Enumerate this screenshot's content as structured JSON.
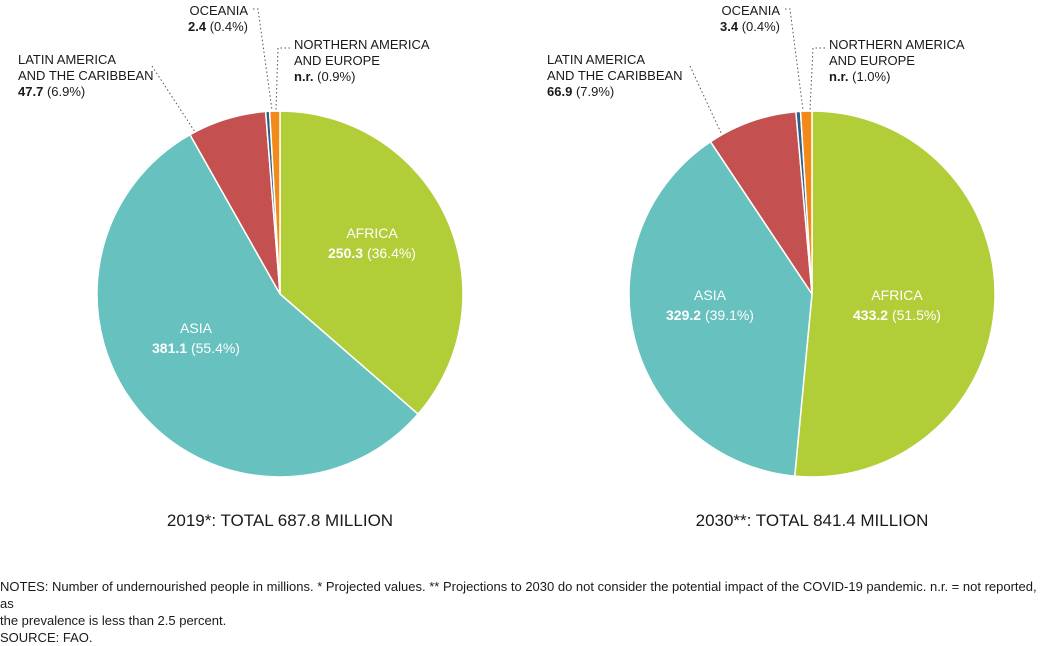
{
  "chart_data": [
    {
      "type": "pie",
      "caption": "2019*: TOTAL 687.8 MILLION",
      "slices": [
        {
          "key": "africa",
          "name": "AFRICA",
          "value": 250.3,
          "display_value": "250.3",
          "percent": "(36.4%)",
          "color": "#b1cd38"
        },
        {
          "key": "asia",
          "name": "ASIA",
          "value": 381.1,
          "display_value": "381.1",
          "percent": "(55.4%)",
          "color": "#66c1bf"
        },
        {
          "key": "latam",
          "name_lines": [
            "LATIN AMERICA",
            "AND THE CARIBBEAN"
          ],
          "value": 47.7,
          "display_value": "47.7",
          "percent": "(6.9%)",
          "color": "#c4504f"
        },
        {
          "key": "oceania",
          "name": "OCEANIA",
          "value": 2.4,
          "display_value": "2.4",
          "percent": "(0.4%)",
          "color": "#2f5e89"
        },
        {
          "key": "namerica_europe",
          "name_lines": [
            "NORTHERN AMERICA",
            "AND EUROPE"
          ],
          "value": 6.2,
          "display_value": "n.r.",
          "percent": "(0.9%)",
          "color": "#f28a1a"
        }
      ]
    },
    {
      "type": "pie",
      "caption": "2030**: TOTAL 841.4 MILLION",
      "slices": [
        {
          "key": "africa",
          "name": "AFRICA",
          "value": 433.2,
          "display_value": "433.2",
          "percent": "(51.5%)",
          "color": "#b1cd38"
        },
        {
          "key": "asia",
          "name": "ASIA",
          "value": 329.2,
          "display_value": "329.2",
          "percent": "(39.1%)",
          "color": "#66c1bf"
        },
        {
          "key": "latam",
          "name_lines": [
            "LATIN AMERICA",
            "AND THE CARIBBEAN"
          ],
          "value": 66.9,
          "display_value": "66.9",
          "percent": "(7.9%)",
          "color": "#c4504f"
        },
        {
          "key": "oceania",
          "name": "OCEANIA",
          "value": 3.4,
          "display_value": "3.4",
          "percent": "(0.4%)",
          "color": "#2f5e89"
        },
        {
          "key": "namerica_europe",
          "name_lines": [
            "NORTHERN AMERICA",
            "AND EUROPE"
          ],
          "value": 8.4,
          "display_value": "n.r.",
          "percent": "(1.0%)",
          "color": "#f28a1a"
        }
      ]
    }
  ],
  "notes": {
    "line1": "NOTES: Number of undernourished people in millions. * Projected values. ** Projections to 2030 do not consider the potential impact of the COVID-19 pandemic. n.r. = not reported, as",
    "line2": "the prevalence is less than 2.5 percent.",
    "source": "SOURCE: FAO."
  }
}
